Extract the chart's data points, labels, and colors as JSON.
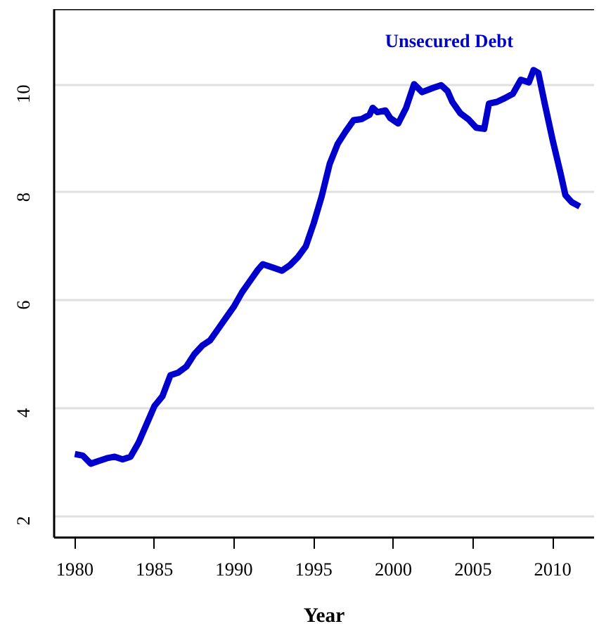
{
  "chart_data": {
    "type": "line",
    "xlabel": "Year",
    "xlim": [
      1978.7,
      2012.6
    ],
    "ylim": [
      1.6,
      11.4
    ],
    "xticks": [
      1980,
      1985,
      1990,
      1995,
      2000,
      2005,
      2010
    ],
    "yticks": [
      2,
      4,
      6,
      8,
      10
    ],
    "grid": "y",
    "marker": "none",
    "line_style": "solid",
    "series": [
      {
        "name": "Unsecured Debt",
        "color": "#0000cc",
        "x": [
          1980.0,
          1980.5,
          1981,
          1981.5,
          1982,
          1982.5,
          1983,
          1983.5,
          1984,
          1984.5,
          1985,
          1985.5,
          1986,
          1986.5,
          1987,
          1987.5,
          1988,
          1988.5,
          1989,
          1989.5,
          1990,
          1990.5,
          1991,
          1991.5,
          1991.8,
          1992.5,
          1993,
          1993.5,
          1994,
          1994.5,
          1995,
          1995.5,
          1996,
          1996.5,
          1997,
          1997.5,
          1998,
          1998.5,
          1998.7,
          1999,
          1999.5,
          1999.8,
          2000.3,
          2000.8,
          2001.3,
          2001.8,
          2002.5,
          2003,
          2003.4,
          2003.7,
          2004.2,
          2004.7,
          2005.2,
          2005.7,
          2006,
          2006.5,
          2007,
          2007.5,
          2008,
          2008.5,
          2008.8,
          2009.1,
          2009.5,
          2010,
          2010.5,
          2010.8,
          2011.2,
          2011.7
        ],
        "values": [
          3.15,
          3.12,
          2.97,
          3.02,
          3.07,
          3.1,
          3.05,
          3.1,
          3.36,
          3.7,
          4.04,
          4.22,
          4.61,
          4.66,
          4.77,
          5.0,
          5.16,
          5.26,
          5.47,
          5.68,
          5.89,
          6.15,
          6.36,
          6.57,
          6.67,
          6.6,
          6.55,
          6.65,
          6.8,
          7.0,
          7.43,
          7.93,
          8.53,
          8.9,
          9.13,
          9.34,
          9.36,
          9.44,
          9.57,
          9.49,
          9.52,
          9.38,
          9.28,
          9.57,
          10.01,
          9.86,
          9.94,
          9.99,
          9.88,
          9.68,
          9.47,
          9.36,
          9.2,
          9.18,
          9.65,
          9.68,
          9.75,
          9.83,
          10.09,
          10.04,
          10.27,
          10.22,
          9.65,
          8.97,
          8.35,
          7.95,
          7.82,
          7.74
        ]
      }
    ]
  }
}
